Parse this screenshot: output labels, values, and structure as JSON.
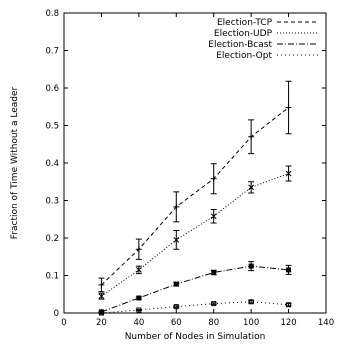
{
  "chart_data": {
    "type": "line",
    "xlabel": "Number of Nodes in Simulation",
    "ylabel": "Fraction of Time Without a Leader",
    "xlim": [
      0,
      140
    ],
    "ylim": [
      0,
      0.8
    ],
    "xticks": [
      0,
      20,
      40,
      60,
      80,
      100,
      120,
      140
    ],
    "yticks": [
      0,
      0.1,
      0.2,
      0.3,
      0.4,
      0.5,
      0.6,
      0.7,
      0.8
    ],
    "xtick_labels": [
      "0",
      "20",
      "40",
      "60",
      "80",
      "100",
      "120",
      "140"
    ],
    "ytick_labels": [
      "0",
      "0.1",
      "0.2",
      "0.3",
      "0.4",
      "0.5",
      "0.6",
      "0.7",
      "0.8"
    ],
    "grid": false,
    "legend_position": "top-right",
    "x": [
      20,
      40,
      60,
      80,
      100,
      120
    ],
    "series": [
      {
        "name": "Election-TCP",
        "line_style": "dashed",
        "marker": "plus",
        "values": [
          0.075,
          0.17,
          0.283,
          0.358,
          0.47,
          0.548
        ],
        "error": [
          0.018,
          0.027,
          0.04,
          0.04,
          0.045,
          0.07
        ]
      },
      {
        "name": "Election-UDP",
        "line_style": "dotted",
        "marker": "cross",
        "values": [
          0.045,
          0.115,
          0.195,
          0.258,
          0.335,
          0.372
        ],
        "error": [
          0.008,
          0.01,
          0.025,
          0.018,
          0.015,
          0.02
        ]
      },
      {
        "name": "Election-Bcast",
        "line_style": "dash-dot",
        "marker": "square",
        "values": [
          0.003,
          0.04,
          0.077,
          0.108,
          0.125,
          0.115
        ],
        "error": [
          0.002,
          0.003,
          0.005,
          0.006,
          0.012,
          0.012
        ]
      },
      {
        "name": "Election-Opt",
        "line_style": "fine-dotted",
        "marker": "square-open",
        "values": [
          0.0,
          0.008,
          0.017,
          0.025,
          0.03,
          0.022
        ],
        "error": [
          0.001,
          0.001,
          0.002,
          0.002,
          0.003,
          0.003
        ]
      }
    ]
  }
}
